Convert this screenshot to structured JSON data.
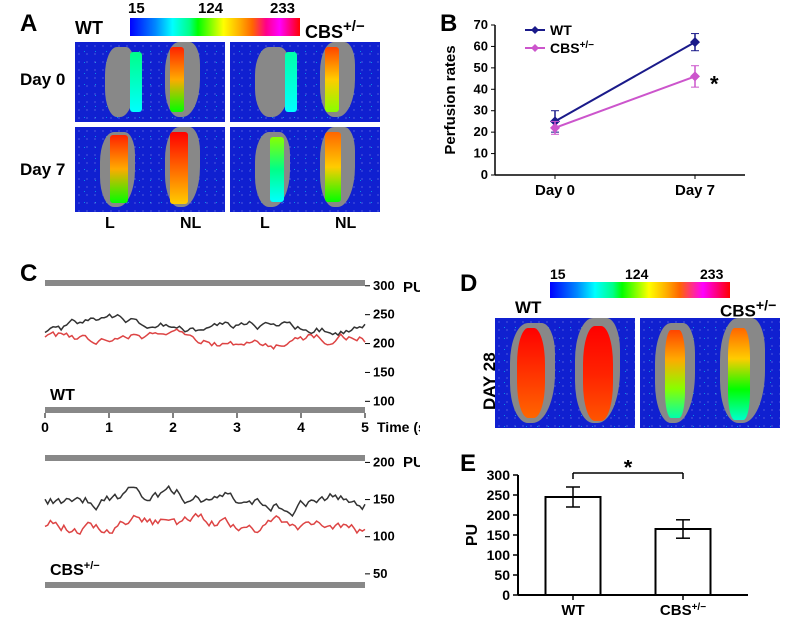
{
  "panels": {
    "A": {
      "label": "A",
      "wt": "WT",
      "cbs": "CBS",
      "sup": "+/−",
      "day0": "Day 0",
      "day7": "Day 7",
      "L": "L",
      "NL": "NL",
      "scale": {
        "min": "15",
        "mid": "124",
        "max": "233"
      }
    },
    "B": {
      "label": "B",
      "type": "line",
      "ylabel": "Perfusion rates",
      "xticks": [
        "Day 0",
        "Day 7"
      ],
      "yticks": [
        "0",
        "10",
        "20",
        "30",
        "40",
        "50",
        "60",
        "70"
      ],
      "legend": [
        {
          "name": "WT",
          "color": "#1a1a8a"
        },
        {
          "name": "CBS",
          "sup": "+/−",
          "color": "#cc55cc"
        }
      ],
      "wt": {
        "x": [
          0,
          1
        ],
        "y": [
          25,
          62
        ],
        "err": [
          5,
          4
        ]
      },
      "cbs": {
        "x": [
          0,
          1
        ],
        "y": [
          22,
          46
        ],
        "err": [
          3,
          5
        ]
      },
      "star": "*",
      "ylim": [
        0,
        70
      ],
      "axis_color": "#000000",
      "font_size": 14
    },
    "C": {
      "label": "C",
      "ylabel": "PU",
      "xlabel": "Time (s)",
      "xticks": [
        "0",
        "1",
        "2",
        "3",
        "4",
        "5"
      ],
      "wt": {
        "name": "WT",
        "yticks": [
          "100",
          "150",
          "200",
          "250",
          "300"
        ],
        "line1_color": "#333333",
        "line2_color": "#dd4444",
        "line1_mean": 225,
        "line2_mean": 210
      },
      "cbs": {
        "name": "CBS",
        "sup": "+/−",
        "yticks": [
          "50",
          "100",
          "150",
          "200"
        ],
        "line1_color": "#333333",
        "line2_color": "#dd4444",
        "line1_mean": 150,
        "line2_mean": 115
      }
    },
    "D": {
      "label": "D",
      "wt": "WT",
      "cbs": "CBS",
      "sup": "+/−",
      "day28": "DAY 28",
      "scale": {
        "min": "15",
        "mid": "124",
        "max": "233"
      }
    },
    "E": {
      "label": "E",
      "type": "bar",
      "ylabel": "PU",
      "xticks": [
        "WT",
        "CBS"
      ],
      "sup": "+/−",
      "yticks": [
        "0",
        "50",
        "100",
        "150",
        "200",
        "250",
        "300"
      ],
      "bars": [
        {
          "name": "WT",
          "value": 245,
          "err": 25,
          "color": "#ffffff"
        },
        {
          "name": "CBS",
          "value": 165,
          "err": 23,
          "color": "#ffffff"
        }
      ],
      "star": "*",
      "ylim": [
        0,
        300
      ],
      "axis_color": "#000000",
      "bar_border": "#000000"
    }
  }
}
